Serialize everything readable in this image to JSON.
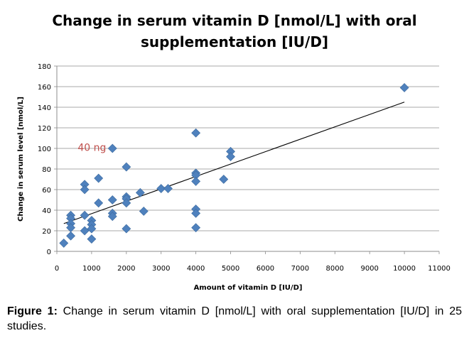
{
  "chart_data": {
    "type": "scatter",
    "title": "Change in serum vitamin D [nmol/L] with oral supplementation [IU/D]",
    "xlabel": "Amount of vitamin D [IU/D]",
    "ylabel": "Change in serum level [nmol/L]",
    "xlim": [
      0,
      11000
    ],
    "ylim": [
      0,
      180
    ],
    "x_ticks": [
      0,
      1000,
      2000,
      3000,
      4000,
      5000,
      6000,
      7000,
      8000,
      9000,
      10000,
      11000
    ],
    "y_ticks": [
      0,
      20,
      40,
      60,
      80,
      100,
      120,
      140,
      160,
      180
    ],
    "grid": "horizontal",
    "marker_color": "#4f81bd",
    "trendline": {
      "x": [
        200,
        10000
      ],
      "y": [
        27,
        145
      ],
      "color": "#000000"
    },
    "annotation": {
      "text": "40 ng",
      "color": "#c0504d",
      "x": 600,
      "y": 101
    },
    "points": [
      {
        "x": 200,
        "y": 8
      },
      {
        "x": 400,
        "y": 35
      },
      {
        "x": 400,
        "y": 32
      },
      {
        "x": 400,
        "y": 27
      },
      {
        "x": 400,
        "y": 23
      },
      {
        "x": 400,
        "y": 15
      },
      {
        "x": 800,
        "y": 65
      },
      {
        "x": 800,
        "y": 60
      },
      {
        "x": 800,
        "y": 35
      },
      {
        "x": 800,
        "y": 20
      },
      {
        "x": 1000,
        "y": 30
      },
      {
        "x": 1000,
        "y": 26
      },
      {
        "x": 1000,
        "y": 22
      },
      {
        "x": 1000,
        "y": 12
      },
      {
        "x": 1200,
        "y": 71
      },
      {
        "x": 1200,
        "y": 47
      },
      {
        "x": 1600,
        "y": 100
      },
      {
        "x": 1600,
        "y": 50
      },
      {
        "x": 1600,
        "y": 37
      },
      {
        "x": 1600,
        "y": 34
      },
      {
        "x": 2000,
        "y": 82
      },
      {
        "x": 2000,
        "y": 53
      },
      {
        "x": 2000,
        "y": 51
      },
      {
        "x": 2000,
        "y": 47
      },
      {
        "x": 2000,
        "y": 22
      },
      {
        "x": 2400,
        "y": 57
      },
      {
        "x": 2500,
        "y": 39
      },
      {
        "x": 3000,
        "y": 61
      },
      {
        "x": 3200,
        "y": 61
      },
      {
        "x": 4000,
        "y": 115
      },
      {
        "x": 4000,
        "y": 76
      },
      {
        "x": 4000,
        "y": 74
      },
      {
        "x": 4000,
        "y": 68
      },
      {
        "x": 4000,
        "y": 41
      },
      {
        "x": 4000,
        "y": 37
      },
      {
        "x": 4000,
        "y": 23
      },
      {
        "x": 4800,
        "y": 70
      },
      {
        "x": 5000,
        "y": 97
      },
      {
        "x": 5000,
        "y": 92
      },
      {
        "x": 10000,
        "y": 159
      }
    ]
  },
  "caption": {
    "lead": "Figure 1:",
    "text": " Change in serum vitamin D [nmol/L] with oral supplementation [IU/D] in 25 studies."
  }
}
